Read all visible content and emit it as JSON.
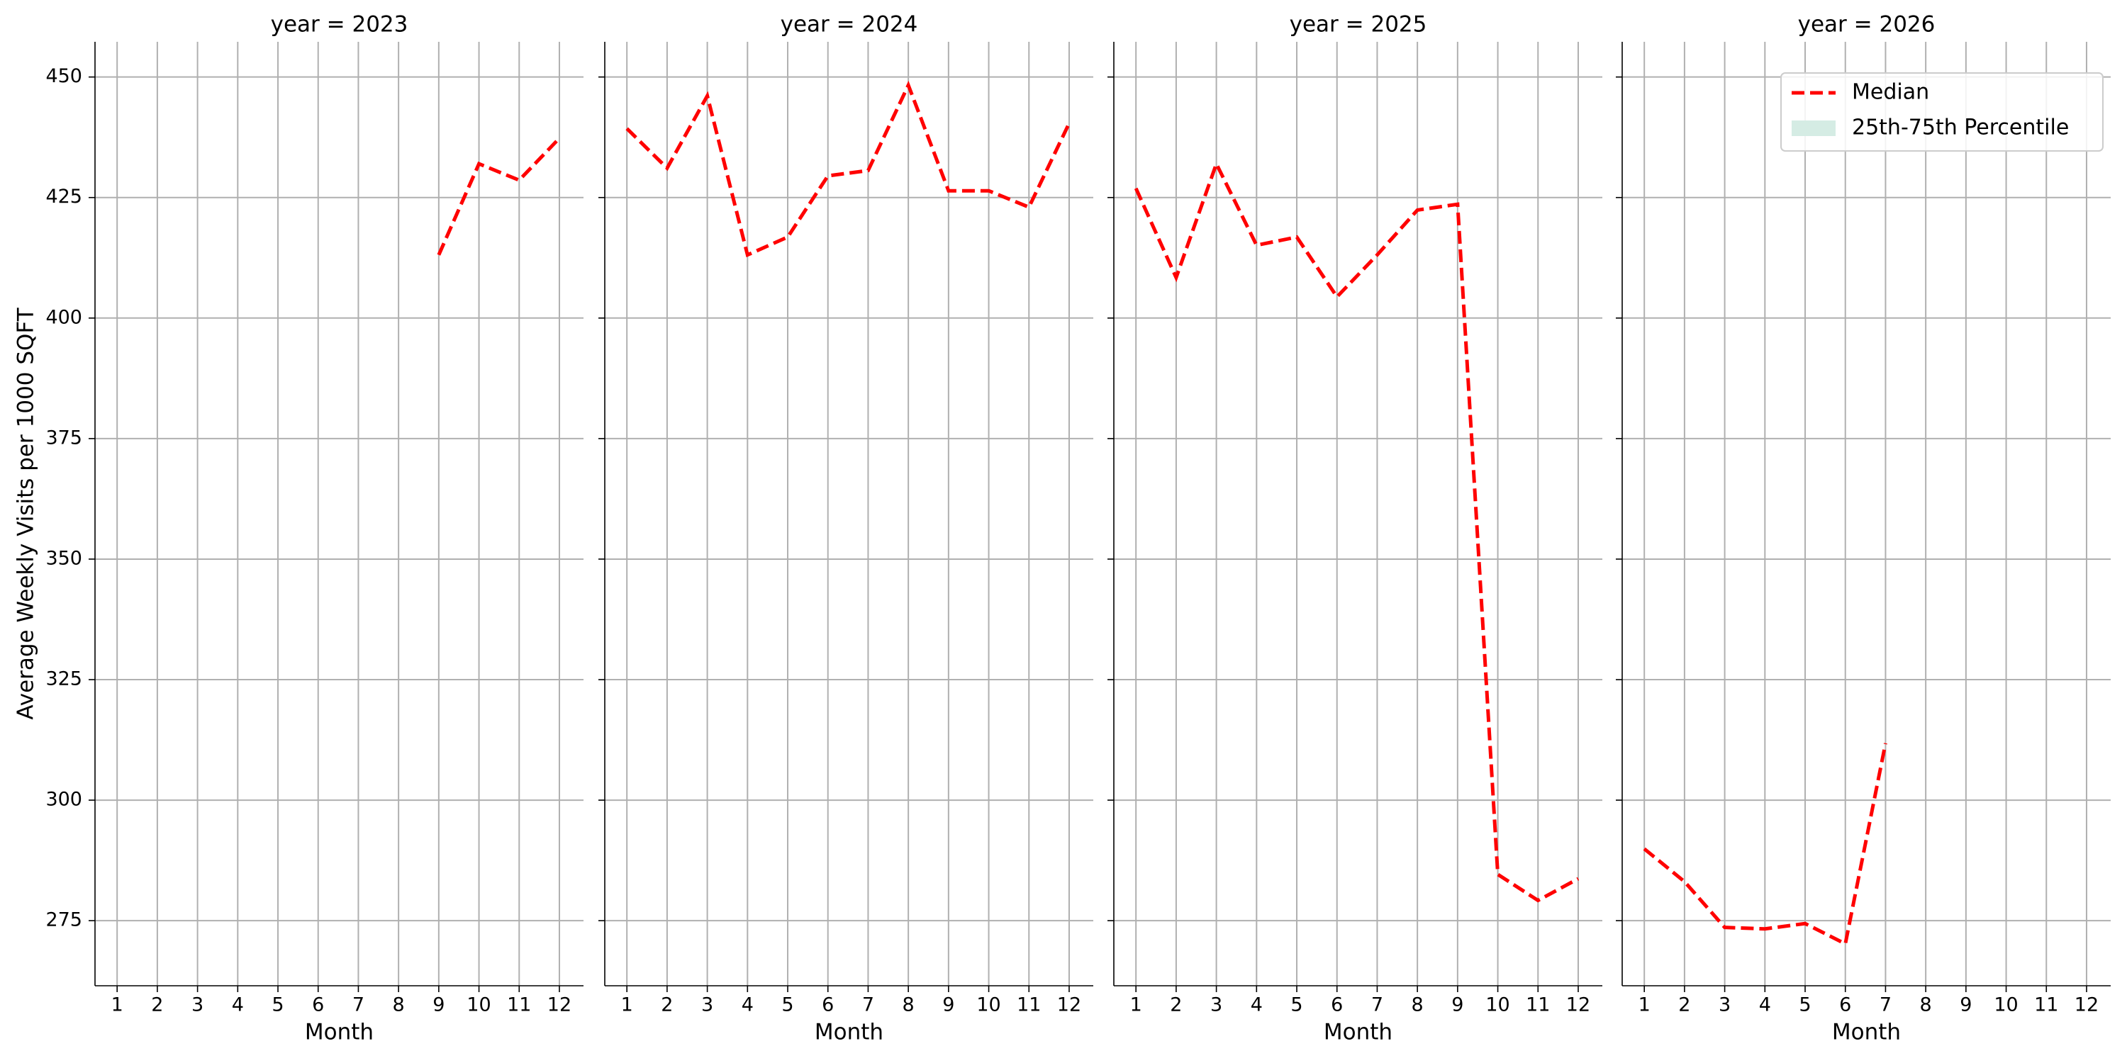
{
  "chart_data": [
    {
      "type": "line",
      "title": "year = 2023",
      "xlabel": "Month",
      "ylabel": "Average Weekly Visits per 1000 SQFT",
      "x": [
        1,
        2,
        3,
        4,
        5,
        6,
        7,
        8,
        9,
        10,
        11,
        12
      ],
      "xlim": [
        0.45,
        12.6
      ],
      "ylim": [
        261.5,
        457.3
      ],
      "yticks": [
        275,
        300,
        325,
        350,
        375,
        400,
        425,
        450
      ],
      "grid": true,
      "series": [
        {
          "color": "#ff0000",
          "values": [
            null,
            null,
            null,
            null,
            null,
            null,
            null,
            null,
            413.1,
            432.0,
            428.6,
            437.3
          ]
        }
      ]
    },
    {
      "type": "line",
      "title": "year = 2024",
      "xlabel": "Month",
      "x": [
        1,
        2,
        3,
        4,
        5,
        6,
        7,
        8,
        9,
        10,
        11,
        12
      ],
      "xlim": [
        0.45,
        12.6
      ],
      "ylim": [
        261.5,
        457.3
      ],
      "yticks": [
        275,
        300,
        325,
        350,
        375,
        400,
        425,
        450
      ],
      "grid": true,
      "series": [
        {
          "color": "#ff0000",
          "values": [
            439.3,
            431.1,
            446.1,
            413.1,
            416.8,
            429.5,
            430.6,
            448.3,
            426.4,
            426.4,
            423.0,
            440.4
          ]
        }
      ]
    },
    {
      "type": "line",
      "title": "year = 2025",
      "xlabel": "Month",
      "x": [
        1,
        2,
        3,
        4,
        5,
        6,
        7,
        8,
        9,
        10,
        11,
        12
      ],
      "xlim": [
        0.45,
        12.6
      ],
      "ylim": [
        261.5,
        457.3
      ],
      "yticks": [
        275,
        300,
        325,
        350,
        375,
        400,
        425,
        450
      ],
      "grid": true,
      "series": [
        {
          "color": "#ff0000",
          "values": [
            426.9,
            408.4,
            432.0,
            415.1,
            416.8,
            404.4,
            413.1,
            422.4,
            423.6,
            284.6,
            279.2,
            283.7
          ]
        }
      ]
    },
    {
      "type": "line",
      "title": "year = 2026",
      "xlabel": "Month",
      "x": [
        1,
        2,
        3,
        4,
        5,
        6,
        7,
        8,
        9,
        10,
        11,
        12
      ],
      "xlim": [
        0.45,
        12.6
      ],
      "ylim": [
        261.5,
        457.3
      ],
      "yticks": [
        275,
        300,
        325,
        350,
        375,
        400,
        425,
        450
      ],
      "grid": true,
      "legend": "upper right",
      "series": [
        {
          "name": "Median",
          "color": "#ff0000",
          "values": [
            289.9,
            283.1,
            273.6,
            273.3,
            274.4,
            270.2,
            311.8,
            null,
            null,
            null,
            null,
            null
          ]
        },
        {
          "name": "25th-75th Percentile",
          "color": "#d5ece4",
          "kind": "band",
          "values": [
            null,
            null,
            null,
            null,
            null,
            null,
            null,
            null,
            null,
            null,
            null,
            null
          ]
        }
      ]
    }
  ]
}
